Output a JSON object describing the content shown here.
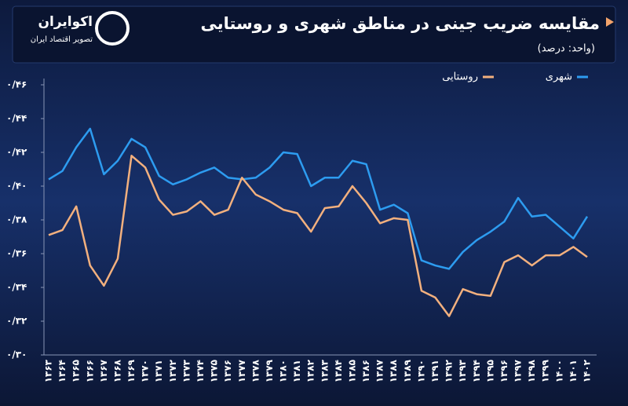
{
  "header": {
    "logo_name": "اکوایران",
    "logo_tagline": "تصویر اقتصاد ایران"
  },
  "chart_data": {
    "type": "line",
    "title": "مقایسه ضریب جینی در مناطق شهری و روستایی",
    "subtitle": "(واحد: درصد)",
    "categories": [
      "۱۳۶۳",
      "۱۳۶۴",
      "۱۳۶۵",
      "۱۳۶۶",
      "۱۳۶۷",
      "۱۳۶۸",
      "۱۳۶۹",
      "۱۳۷۰",
      "۱۳۷۱",
      "۱۳۷۲",
      "۱۳۷۳",
      "۱۳۷۴",
      "۱۳۷۵",
      "۱۳۷۶",
      "۱۳۷۷",
      "۱۳۷۸",
      "۱۳۷۹",
      "۱۳۸۰",
      "۱۳۸۱",
      "۱۳۸۲",
      "۱۳۸۳",
      "۱۳۸۴",
      "۱۳۸۵",
      "۱۳۸۶",
      "۱۳۸۷",
      "۱۳۸۸",
      "۱۳۸۹",
      "۱۳۹۰",
      "۱۳۹۱",
      "۱۳۹۲",
      "۱۳۹۳",
      "۱۳۹۴",
      "۱۳۹۵",
      "۱۳۹۶",
      "۱۳۹۷",
      "۱۳۹۸",
      "۱۳۹۹",
      "۱۴۰۰",
      "۱۴۰۱",
      "۱۴۰۲"
    ],
    "series": [
      {
        "name": "شهری",
        "color": "#2d9cf0",
        "values": [
          0.404,
          0.409,
          0.423,
          0.434,
          0.407,
          0.415,
          0.428,
          0.423,
          0.406,
          0.401,
          0.404,
          0.408,
          0.411,
          0.405,
          0.404,
          0.405,
          0.411,
          0.42,
          0.419,
          0.4,
          0.405,
          0.405,
          0.415,
          0.413,
          0.386,
          0.389,
          0.384,
          0.356,
          0.353,
          0.351,
          0.361,
          0.368,
          0.373,
          0.379,
          0.393,
          0.382,
          0.383,
          0.376,
          0.369,
          0.382
        ]
      },
      {
        "name": "روستایی",
        "color": "#f2b07e",
        "values": [
          0.371,
          0.374,
          0.388,
          0.353,
          0.341,
          0.357,
          0.418,
          0.411,
          0.392,
          0.383,
          0.385,
          0.391,
          0.383,
          0.386,
          0.405,
          0.395,
          0.391,
          0.386,
          0.384,
          0.373,
          0.387,
          0.388,
          0.4,
          0.39,
          0.378,
          0.381,
          0.38,
          0.338,
          0.334,
          0.323,
          0.339,
          0.336,
          0.335,
          0.355,
          0.359,
          0.353,
          0.359,
          0.359,
          0.364,
          0.358
        ]
      }
    ],
    "ylim": [
      0.3,
      0.46
    ],
    "yticks": [
      {
        "value": 0.3,
        "label": "۰/۳۰"
      },
      {
        "value": 0.32,
        "label": "۰/۳۲"
      },
      {
        "value": 0.34,
        "label": "۰/۳۴"
      },
      {
        "value": 0.36,
        "label": "۰/۳۶"
      },
      {
        "value": 0.38,
        "label": "۰/۳۸"
      },
      {
        "value": 0.4,
        "label": "۰/۴۰"
      },
      {
        "value": 0.42,
        "label": "۰/۴۲"
      },
      {
        "value": 0.44,
        "label": "۰/۴۴"
      },
      {
        "value": 0.46,
        "label": "۰/۴۶"
      }
    ],
    "grid": false
  }
}
